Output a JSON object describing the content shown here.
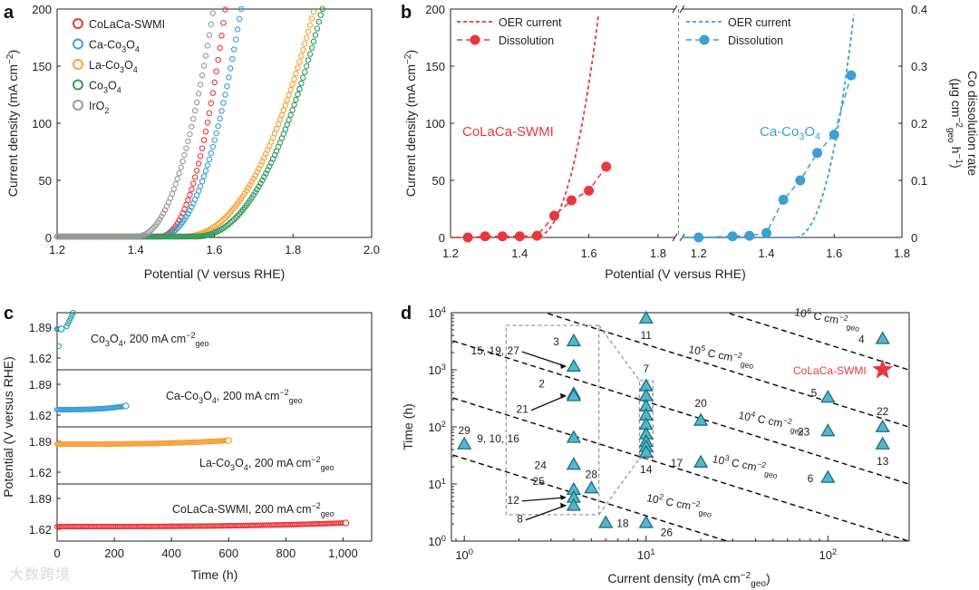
{
  "colors": {
    "colaca": "#e8383d",
    "ca": "#3d9fd2",
    "la": "#f5a23a",
    "co": "#2e9a5a",
    "ir": "#9a9a9a",
    "teal": "#1d9aa0",
    "marker_fill": "#57b7c8",
    "marker_edge": "#1a6f85"
  },
  "watermark": "大数跨境",
  "chart_data": [
    {
      "panel": "a",
      "type": "scatter",
      "xlabel": "Potential (V versus RHE)",
      "ylabel_main": "Current density (mA cm",
      "ylabel_sup": "−2",
      "ylabel_close": ")",
      "xlim": [
        1.2,
        2.0
      ],
      "ylim": [
        0,
        200
      ],
      "xticks": [
        "1.2",
        "1.4",
        "1.6",
        "1.8",
        "2.0"
      ],
      "yticks": [
        "0",
        "50",
        "100",
        "150",
        "200"
      ],
      "series": [
        {
          "name": "CoLaCa-SWMI",
          "onset": 1.46,
          "half": 1.595,
          "end": 1.628,
          "color": "colaca"
        },
        {
          "name": "Ca-Co3O4",
          "onset": 1.46,
          "half": 1.618,
          "end": 1.668,
          "color": "ca"
        },
        {
          "name": "La-Co3O4",
          "onset": 1.52,
          "half": 1.765,
          "end": 1.855,
          "color": "la"
        },
        {
          "name": "Co3O4",
          "onset": 1.55,
          "half": 1.785,
          "end": 1.875,
          "color": "co"
        },
        {
          "name": "IrO2",
          "onset": 1.4,
          "half": 1.555,
          "end": 1.598,
          "color": "ir"
        }
      ],
      "legend": [
        {
          "base": "CoLaCa-SWMI",
          "parts": [
            [
              "CoLaCa-SWMI",
              ""
            ]
          ],
          "color": "colaca"
        },
        {
          "base": "Ca-Co3O4",
          "parts": [
            [
              "Ca-Co",
              ""
            ],
            [
              "3",
              "sub"
            ],
            [
              "O",
              ""
            ],
            [
              "4",
              "sub"
            ]
          ],
          "color": "ca"
        },
        {
          "base": "La-Co3O4",
          "parts": [
            [
              "La-Co",
              ""
            ],
            [
              "3",
              "sub"
            ],
            [
              "O",
              ""
            ],
            [
              "4",
              "sub"
            ]
          ],
          "color": "la"
        },
        {
          "base": "Co3O4",
          "parts": [
            [
              "Co",
              ""
            ],
            [
              "3",
              "sub"
            ],
            [
              "O",
              ""
            ],
            [
              "4",
              "sub"
            ]
          ],
          "color": "co"
        },
        {
          "base": "IrO2",
          "parts": [
            [
              "IrO",
              ""
            ],
            [
              "2",
              "sub"
            ]
          ],
          "color": "ir"
        }
      ]
    },
    {
      "panel": "b",
      "type": "line",
      "xlabel": "Potential (V versus RHE)",
      "ylabel_left": "Current density (mA cm",
      "ylabel_left_sup": "−2",
      "ylabel_right_line1": "Co dissolution rate",
      "ylabel_right_line2": "(μg cm",
      "ylabel_right_sup": "−2",
      "ylabel_right_sub": "geo",
      "ylabel_right_end": " h",
      "ylabel_right_sup2": "−1",
      "ylim_left": [
        0,
        200
      ],
      "ylim_right": [
        0,
        0.4
      ],
      "yticks_left": [
        "0",
        "50",
        "100",
        "150",
        "200"
      ],
      "yticks_right": [
        "0",
        "0.1",
        "0.2",
        "0.3",
        "0.4"
      ],
      "left": {
        "xlim": [
          1.2,
          1.85
        ],
        "xticks": [
          "1.2",
          "1.4",
          "1.6",
          "1.8"
        ],
        "label": "CoLaCa-SWMI",
        "oer_onset": 1.44,
        "oer_end": 1.63,
        "dissolution_x": [
          1.25,
          1.3,
          1.35,
          1.4,
          1.45,
          1.5,
          1.55,
          1.6,
          1.65
        ],
        "dissolution_y": [
          0.0,
          0.002,
          0.002,
          0.002,
          0.003,
          0.038,
          0.065,
          0.082,
          0.124
        ],
        "color": "colaca"
      },
      "right": {
        "xlim": [
          1.15,
          1.8
        ],
        "xticks": [
          "1.2",
          "1.4",
          "1.6",
          "1.8"
        ],
        "label_parts": [
          [
            "Ca-Co",
            ""
          ],
          [
            "3",
            "sub"
          ],
          [
            "O",
            ""
          ],
          [
            "4",
            "sub"
          ]
        ],
        "label": "Ca-Co3O4",
        "oer_onset": 1.48,
        "oer_end": 1.66,
        "dissolution_x": [
          1.2,
          1.3,
          1.35,
          1.4,
          1.45,
          1.5,
          1.55,
          1.6,
          1.65
        ],
        "dissolution_y": [
          0.0,
          0.002,
          0.003,
          0.008,
          0.066,
          0.1,
          0.148,
          0.18,
          0.284
        ],
        "color": "ca"
      },
      "legend": [
        "OER current",
        "Dissolution"
      ]
    },
    {
      "panel": "c",
      "type": "line",
      "xlabel": "Time (h)",
      "ylabel": "Potential (V versus RHE)",
      "xlim": [
        0,
        1100
      ],
      "xticks": [
        "0",
        "200",
        "400",
        "600",
        "800",
        "1,000"
      ],
      "subpanels": [
        {
          "label_parts": [
            [
              "Co",
              ""
            ],
            [
              "3",
              "sub"
            ],
            [
              "O",
              ""
            ],
            [
              "4",
              "sub"
            ],
            [
              ", 200 mA cm",
              ""
            ],
            [
              "−2",
              "sup"
            ],
            [
              "geo",
              "sub"
            ]
          ],
          "label": "Co3O4, 200 mA cm-2 geo",
          "yticks": [
            "1.89",
            "1.62"
          ],
          "end_time": 15,
          "color": "teal"
        },
        {
          "label_parts": [
            [
              "Ca-Co",
              ""
            ],
            [
              "3",
              "sub"
            ],
            [
              "O",
              ""
            ],
            [
              "4",
              "sub"
            ],
            [
              ", 200 mA cm",
              ""
            ],
            [
              "−2",
              "sup"
            ],
            [
              "geo",
              "sub"
            ]
          ],
          "label": "Ca-Co3O4, 200 mA cm-2 geo",
          "yticks": [
            "1.89",
            "1.62"
          ],
          "end_time": 240,
          "color": "ca"
        },
        {
          "label_parts": [
            [
              "La-Co",
              ""
            ],
            [
              "3",
              "sub"
            ],
            [
              "O",
              ""
            ],
            [
              "4",
              "sub"
            ],
            [
              ", 200 mA cm",
              ""
            ],
            [
              "−2",
              "sup"
            ],
            [
              "geo",
              "sub"
            ]
          ],
          "label": "La-Co3O4, 200 mA cm-2 geo",
          "yticks": [
            "1.89",
            "1.62"
          ],
          "end_time": 600,
          "color": "la"
        },
        {
          "label_parts": [
            [
              "CoLaCa-SWMI, 200 mA cm",
              ""
            ],
            [
              "−2",
              "sup"
            ],
            [
              "geo",
              "sub"
            ]
          ],
          "label": "CoLaCa-SWMI, 200 mA cm-2 geo",
          "yticks": [
            "1.89",
            "1.62"
          ],
          "end_time": 1010,
          "color": "colaca"
        }
      ]
    },
    {
      "panel": "d",
      "type": "scatter",
      "xlabel_main": "Current density (mA cm",
      "xlabel_sup": "−2",
      "xlabel_sub": "geo",
      "xlabel_close": ")",
      "ylabel": "Time (h)",
      "xscale": "log",
      "yscale": "log",
      "xlim": [
        0.85,
        280
      ],
      "ylim": [
        1,
        10000
      ],
      "xticks": [
        {
          "v": 1,
          "base": "10",
          "exp": "0"
        },
        {
          "v": 10,
          "base": "10",
          "exp": "1"
        },
        {
          "v": 100,
          "base": "10",
          "exp": "2"
        }
      ],
      "yticks": [
        {
          "v": 1,
          "base": "10",
          "exp": "0"
        },
        {
          "v": 10,
          "base": "10",
          "exp": "1"
        },
        {
          "v": 100,
          "base": "10",
          "exp": "2"
        },
        {
          "v": 1000,
          "base": "10",
          "exp": "3"
        },
        {
          "v": 10000,
          "base": "10",
          "exp": "4"
        }
      ],
      "charge_lines": [
        {
          "charge": 100,
          "base": "10",
          "exp": "2",
          "unit": " C cm",
          "unit_sup": "−2",
          "unit_sub": "geo",
          "lx": 10,
          "ly": 5
        },
        {
          "charge": 1000,
          "base": "10",
          "exp": "3",
          "unit": " C cm",
          "unit_sup": "−2",
          "unit_sub": "geo",
          "lx": 23,
          "ly": 24
        },
        {
          "charge": 10000,
          "base": "10",
          "exp": "4",
          "unit": " C cm",
          "unit_sup": "−2",
          "unit_sub": "geo",
          "lx": 32,
          "ly": 140
        },
        {
          "charge": 100000,
          "base": "10",
          "exp": "5",
          "unit": " C cm",
          "unit_sup": "−2",
          "unit_sub": "geo",
          "lx": 17,
          "ly": 2000
        },
        {
          "charge": 1000000,
          "base": "10",
          "exp": "6",
          "unit": " C cm",
          "unit_sup": "−2",
          "unit_sub": "geo",
          "lx": 65,
          "ly": 9000
        }
      ],
      "points": [
        {
          "label": "3",
          "x": 4,
          "y": 3200,
          "lx": -16,
          "ly": 0
        },
        {
          "label": "15, 19, 27",
          "x": 4,
          "y": 1150,
          "lx": -60,
          "ly": -18
        },
        {
          "label": "2",
          "x": 4,
          "y": 380,
          "lx": -32,
          "ly": -12
        },
        {
          "label": "21",
          "x": 4,
          "y": 350,
          "lx": -50,
          "ly": 14
        },
        {
          "label": "9, 10, 16",
          "x": 4,
          "y": 65,
          "lx": -60,
          "ly": 0
        },
        {
          "label": "24",
          "x": 4,
          "y": 22,
          "lx": -30,
          "ly": 0
        },
        {
          "label": "25",
          "x": 4,
          "y": 8,
          "lx": -32,
          "ly": -10
        },
        {
          "label": "12",
          "x": 4,
          "y": 5.8,
          "lx": -60,
          "ly": 2
        },
        {
          "label": "8",
          "x": 4,
          "y": 4.2,
          "lx": -56,
          "ly": 14
        },
        {
          "label": "28",
          "x": 5,
          "y": 8.5,
          "lx": 0,
          "ly": -16
        },
        {
          "label": "29",
          "x": 1,
          "y": 50,
          "lx": 0,
          "ly": -16
        },
        {
          "label": "18",
          "x": 6,
          "y": 2.1,
          "lx": 12,
          "ly": 0
        },
        {
          "label": "11",
          "x": 10,
          "y": 8000,
          "lx": 0,
          "ly": 18
        },
        {
          "label": "7",
          "x": 10,
          "y": 520,
          "lx": 0,
          "ly": -20
        },
        {
          "label": "",
          "x": 10,
          "y": 350
        },
        {
          "label": "",
          "x": 10,
          "y": 230
        },
        {
          "label": "",
          "x": 10,
          "y": 160
        },
        {
          "label": "",
          "x": 10,
          "y": 110
        },
        {
          "label": "",
          "x": 10,
          "y": 75
        },
        {
          "label": "",
          "x": 10,
          "y": 55
        },
        {
          "label": "",
          "x": 10,
          "y": 45
        },
        {
          "label": "14",
          "x": 10,
          "y": 36,
          "lx": 0,
          "ly": 18
        },
        {
          "label": "26",
          "x": 10,
          "y": 2.1,
          "lx": 16,
          "ly": 10
        },
        {
          "label": "20",
          "x": 20,
          "y": 130,
          "lx": 0,
          "ly": -20
        },
        {
          "label": "17",
          "x": 20,
          "y": 24,
          "lx": -20,
          "ly": 0
        },
        {
          "label": "5",
          "x": 100,
          "y": 330,
          "lx": -12,
          "ly": -6
        },
        {
          "label": "23",
          "x": 100,
          "y": 85,
          "lx": -20,
          "ly": 0
        },
        {
          "label": "6",
          "x": 100,
          "y": 13,
          "lx": -16,
          "ly": 0
        },
        {
          "label": "4",
          "x": 200,
          "y": 3500,
          "lx": -20,
          "ly": 0
        },
        {
          "label": "22",
          "x": 200,
          "y": 100,
          "lx": 0,
          "ly": -18
        },
        {
          "label": "13",
          "x": 200,
          "y": 50,
          "lx": 0,
          "ly": 18
        }
      ],
      "arrow_labels": [
        "15, 19, 27",
        "21",
        "12",
        "8"
      ],
      "star": {
        "label": "CoLaCa-SWMI",
        "x": 200,
        "y": 1000
      }
    }
  ]
}
